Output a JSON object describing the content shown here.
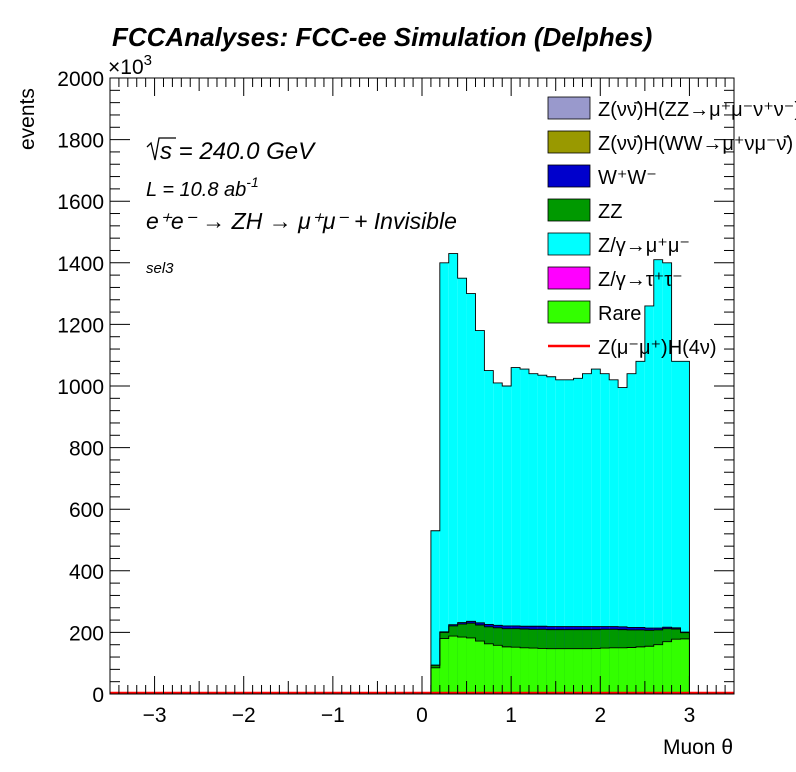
{
  "chart_data": {
    "type": "stacked-histogram",
    "title": "FCCAnalyses: FCC-ee Simulation (Delphes)",
    "xlabel": "Muon θ",
    "ylabel": "events",
    "y_multiplier": "×10",
    "y_multiplier_exp": "3",
    "xlim": [
      -3.5,
      3.5
    ],
    "ylim": [
      0,
      2000
    ],
    "x_ticks": [
      -3,
      -2,
      -1,
      0,
      1,
      2,
      3
    ],
    "x_tick_labels": [
      "−3",
      "−2",
      "−1",
      "0",
      "1",
      "2",
      "3"
    ],
    "y_ticks": [
      0,
      200,
      400,
      600,
      800,
      1000,
      1200,
      1400,
      1600,
      1800,
      2000
    ],
    "y_tick_labels": [
      "0",
      "200",
      "400",
      "600",
      "800",
      "1000",
      "1200",
      "1400",
      "1600",
      "1800",
      "2000"
    ],
    "annotations": {
      "sqrt_s": {
        "sym": "s",
        "text": " = 240.0 GeV"
      },
      "lumi": {
        "base": "L = 10.8 ab",
        "exp": "-1"
      },
      "process": "e⁺e⁻ → ZH → μ⁺μ⁻ + Invisible",
      "selection": "sel3"
    },
    "bins": {
      "start": 0.1,
      "width": 0.1,
      "edges_note": "last bin ends at 3.0"
    },
    "series": [
      {
        "name": "Rare",
        "color": "#33ff00",
        "stack": true,
        "values": [
          85,
          180,
          188,
          185,
          182,
          172,
          163,
          158,
          153,
          152,
          150,
          149,
          148,
          147,
          147,
          147,
          147,
          147,
          148,
          149,
          150,
          150,
          151,
          153,
          155,
          160,
          170,
          178,
          179
        ]
      },
      {
        "name": "ZZ",
        "color": "#009900",
        "stack": true,
        "values": [
          8,
          20,
          33,
          42,
          48,
          52,
          55,
          57,
          59,
          60,
          61,
          61,
          62,
          62,
          62,
          62,
          62,
          62,
          61,
          61,
          60,
          59,
          57,
          55,
          52,
          48,
          42,
          33,
          20
        ]
      },
      {
        "name": "W⁺W⁻",
        "color": "#0000cc",
        "stack": true,
        "values": [
          1,
          2,
          4,
          5,
          6,
          7,
          8,
          8,
          9,
          9,
          9,
          10,
          10,
          10,
          10,
          10,
          10,
          10,
          10,
          9,
          9,
          9,
          8,
          8,
          7,
          6,
          5,
          4,
          2
        ]
      },
      {
        "name": "Z/γ→μ⁺μ⁻",
        "color": "#00ffff",
        "stack": true,
        "total_values": [
          530,
          1400,
          1430,
          1350,
          1300,
          1180,
          1050,
          1010,
          1000,
          1060,
          1055,
          1040,
          1035,
          1030,
          1020,
          1020,
          1025,
          1040,
          1055,
          1040,
          1020,
          995,
          1040,
          1080,
          1260,
          1410,
          1400,
          1080,
          1080
        ]
      }
    ],
    "legend": {
      "placement": "top-right",
      "entries": [
        {
          "label": "Z(νν̄)H(ZZ→μ⁺μ⁻ν⁺ν⁻)",
          "color": "#9999cc",
          "kind": "box"
        },
        {
          "label": "Z(νν̄)H(WW→μ⁺νμ⁻ν̄)",
          "color": "#999900",
          "kind": "box"
        },
        {
          "label": "W⁺W⁻",
          "color": "#0000cc",
          "kind": "box"
        },
        {
          "label": "ZZ",
          "color": "#009900",
          "kind": "box"
        },
        {
          "label": "Z/γ→μ⁺μ⁻",
          "color": "#00ffff",
          "kind": "box"
        },
        {
          "label": "Z/γ→τ⁺τ⁻",
          "color": "#ff00ff",
          "kind": "box"
        },
        {
          "label": "Rare",
          "color": "#33ff00",
          "kind": "box"
        },
        {
          "label": "Z(μ⁻μ⁺)H(4ν)",
          "color": "#ff0000",
          "kind": "line"
        }
      ]
    },
    "signal_line": {
      "name": "Z(μ⁻μ⁺)H(4ν)",
      "color": "#ff0000",
      "value": 0
    }
  }
}
